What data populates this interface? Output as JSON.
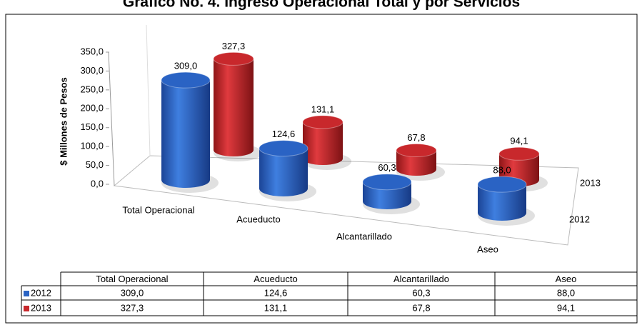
{
  "chart_data": {
    "type": "bar3d",
    "title": "Gráfico No. 4. Ingreso Operacional Total y por Servicios",
    "y_label": "$ Millones de Pesos",
    "categories": [
      "Total Operacional",
      "Acueducto",
      "Alcantarillado",
      "Aseo"
    ],
    "series": [
      {
        "name": "2012",
        "color": "#2a63c4",
        "values": [
          309.0,
          124.6,
          60.3,
          88.0
        ],
        "value_labels": [
          "309,0",
          "124,6",
          "60,3",
          "88,0"
        ]
      },
      {
        "name": "2013",
        "color": "#c8282c",
        "values": [
          327.3,
          131.1,
          67.8,
          94.1
        ],
        "value_labels": [
          "327,3",
          "131,1",
          "67,8",
          "94,1"
        ]
      }
    ],
    "ylim": [
      0,
      350
    ],
    "yticks": [
      {
        "value": 0,
        "label": "0,0"
      },
      {
        "value": 50,
        "label": "50,0"
      },
      {
        "value": 100,
        "label": "100,0"
      },
      {
        "value": 150,
        "label": "150,0"
      },
      {
        "value": 200,
        "label": "200,0"
      },
      {
        "value": 250,
        "label": "250,0"
      },
      {
        "value": 300,
        "label": "300,0"
      },
      {
        "value": 350,
        "label": "350,0"
      }
    ],
    "data_table": true
  }
}
